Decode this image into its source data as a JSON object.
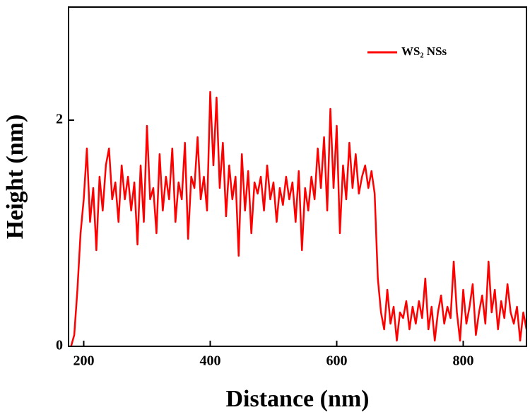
{
  "chart_data": {
    "type": "line",
    "xlabel": "Distance (nm)",
    "ylabel": "Height (nm)",
    "xlim": [
      176,
      900
    ],
    "ylim": [
      0,
      3
    ],
    "xticks": [
      200,
      400,
      600,
      800
    ],
    "yticks": [
      0,
      2
    ],
    "legend": "upper right",
    "x": [
      180,
      185,
      190,
      195,
      200,
      205,
      210,
      215,
      220,
      225,
      230,
      235,
      240,
      245,
      250,
      255,
      260,
      265,
      270,
      275,
      280,
      285,
      290,
      295,
      300,
      305,
      310,
      315,
      320,
      325,
      330,
      335,
      340,
      345,
      350,
      355,
      360,
      365,
      370,
      375,
      380,
      385,
      390,
      395,
      400,
      405,
      410,
      415,
      420,
      425,
      430,
      435,
      440,
      445,
      450,
      455,
      460,
      465,
      470,
      475,
      480,
      485,
      490,
      495,
      500,
      505,
      510,
      515,
      520,
      525,
      530,
      535,
      540,
      545,
      550,
      555,
      560,
      565,
      570,
      575,
      580,
      585,
      590,
      595,
      600,
      605,
      610,
      615,
      620,
      625,
      630,
      635,
      640,
      645,
      650,
      655,
      660,
      665,
      670,
      675,
      680,
      685,
      690,
      695,
      700,
      705,
      710,
      715,
      720,
      725,
      730,
      735,
      740,
      745,
      750,
      755,
      760,
      765,
      770,
      775,
      780,
      785,
      790,
      795,
      800,
      805,
      810,
      815,
      820,
      825,
      830,
      835,
      840,
      845,
      850,
      855,
      860,
      865,
      870,
      875,
      880,
      885,
      890,
      895,
      900
    ],
    "series": [
      {
        "name": "WS₂ NSs",
        "color": "#ff0000",
        "values": [
          0,
          0.1,
          0.5,
          1.0,
          1.3,
          1.75,
          1.1,
          1.4,
          0.85,
          1.5,
          1.2,
          1.6,
          1.75,
          1.3,
          1.45,
          1.1,
          1.6,
          1.3,
          1.5,
          1.2,
          1.45,
          0.9,
          1.6,
          1.1,
          1.95,
          1.3,
          1.4,
          1.0,
          1.7,
          1.2,
          1.5,
          1.3,
          1.75,
          1.1,
          1.45,
          1.3,
          1.8,
          0.95,
          1.5,
          1.4,
          1.85,
          1.3,
          1.5,
          1.2,
          2.25,
          1.6,
          2.2,
          1.4,
          1.8,
          1.15,
          1.6,
          1.3,
          1.5,
          0.8,
          1.7,
          1.2,
          1.55,
          1.0,
          1.45,
          1.35,
          1.5,
          1.2,
          1.6,
          1.3,
          1.45,
          1.1,
          1.4,
          1.25,
          1.5,
          1.3,
          1.45,
          1.1,
          1.55,
          0.85,
          1.4,
          1.2,
          1.5,
          1.3,
          1.75,
          1.4,
          1.85,
          1.2,
          2.1,
          1.4,
          1.95,
          1.0,
          1.6,
          1.3,
          1.8,
          1.4,
          1.7,
          1.35,
          1.5,
          1.6,
          1.4,
          1.55,
          1.35,
          0.6,
          0.3,
          0.15,
          0.5,
          0.2,
          0.35,
          0.05,
          0.3,
          0.25,
          0.4,
          0.15,
          0.35,
          0.2,
          0.4,
          0.25,
          0.6,
          0.15,
          0.35,
          0.05,
          0.3,
          0.45,
          0.2,
          0.35,
          0.25,
          0.75,
          0.3,
          0.05,
          0.5,
          0.2,
          0.35,
          0.55,
          0.1,
          0.3,
          0.45,
          0.2,
          0.75,
          0.3,
          0.5,
          0.15,
          0.4,
          0.25,
          0.55,
          0.3,
          0.2,
          0.35,
          0.05,
          0.3,
          0.15
        ]
      }
    ]
  }
}
